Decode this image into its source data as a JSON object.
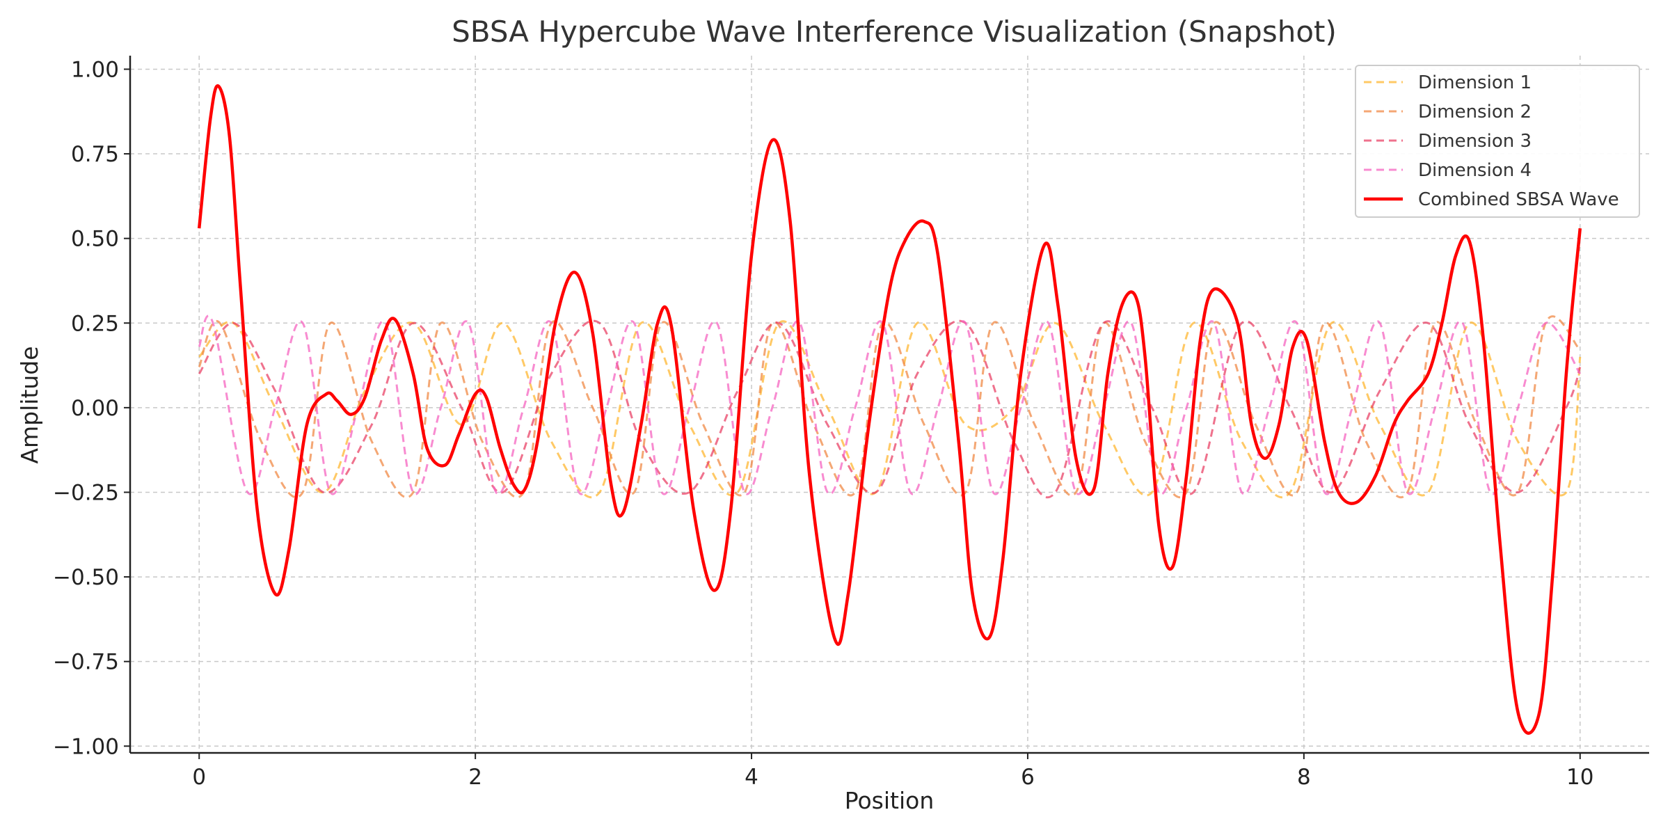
{
  "chart_data": {
    "type": "line",
    "title": "SBSA Hypercube Wave Interference Visualization (Snapshot)",
    "xlabel": "Position",
    "ylabel": "Amplitude",
    "xlim": [
      -0.5,
      10.5
    ],
    "ylim": [
      -1.02,
      1.04
    ],
    "x_ticks": [
      0,
      2,
      4,
      6,
      8,
      10
    ],
    "x_tick_labels": [
      "0",
      "2",
      "4",
      "6",
      "8",
      "10"
    ],
    "y_ticks": [
      1.0,
      0.75,
      0.5,
      0.25,
      0.0,
      -0.25,
      -0.5,
      -0.75,
      -1.0
    ],
    "y_tick_labels": [
      "1.00",
      "0.75",
      "0.50",
      "0.25",
      "0.00",
      "−0.25",
      "−0.50",
      "−0.75",
      "−1.00"
    ],
    "grid": true,
    "legend_position": "top-right",
    "series": [
      {
        "name": "Dimension 1",
        "style": "dashed",
        "color": "#FFB732",
        "opacity": 0.75,
        "x": [
          0,
          0.25,
          0.55,
          0.9,
          1.2,
          1.55,
          1.9,
          2.2,
          2.55,
          2.9,
          3.2,
          3.55,
          3.9,
          4.2,
          4.55,
          4.9,
          5.2,
          5.55,
          5.9,
          6.2,
          6.55,
          6.9,
          7.2,
          7.55,
          7.9,
          8.2,
          8.55,
          8.9,
          9.2,
          9.55,
          9.9,
          10
        ],
        "y": [
          0.15,
          0.25,
          0.0,
          -0.25,
          0.05,
          0.25,
          -0.05,
          0.25,
          -0.1,
          -0.25,
          0.25,
          -0.05,
          -0.25,
          0.25,
          0.0,
          -0.25,
          0.25,
          -0.05,
          0.0,
          0.25,
          -0.05,
          -0.25,
          0.25,
          -0.1,
          -0.25,
          0.25,
          -0.05,
          -0.25,
          0.25,
          -0.1,
          -0.25,
          0.15
        ]
      },
      {
        "name": "Dimension 2",
        "style": "dashed",
        "color": "#F08A45",
        "opacity": 0.75,
        "x": [
          0,
          0.15,
          0.45,
          0.75,
          0.95,
          1.25,
          1.55,
          1.75,
          2.05,
          2.35,
          2.55,
          2.85,
          3.15,
          3.35,
          3.65,
          3.95,
          4.15,
          4.45,
          4.75,
          4.95,
          5.25,
          5.55,
          5.75,
          6.05,
          6.35,
          6.55,
          6.85,
          7.15,
          7.35,
          7.65,
          7.95,
          8.15,
          8.45,
          8.75,
          8.95,
          9.25,
          9.55,
          9.75,
          10
        ],
        "y": [
          0.12,
          0.25,
          -0.1,
          -0.25,
          0.25,
          -0.1,
          -0.25,
          0.25,
          -0.1,
          -0.25,
          0.25,
          0.0,
          -0.25,
          0.25,
          -0.05,
          -0.25,
          0.25,
          -0.05,
          -0.25,
          0.25,
          -0.05,
          -0.25,
          0.25,
          -0.05,
          -0.25,
          0.25,
          -0.1,
          -0.25,
          0.25,
          -0.05,
          -0.25,
          0.25,
          -0.1,
          -0.25,
          0.25,
          -0.05,
          -0.25,
          0.25,
          0.17
        ]
      },
      {
        "name": "Dimension 3",
        "style": "dashed",
        "color": "#E8365D",
        "opacity": 0.7,
        "x": [
          0,
          0.25,
          0.55,
          0.9,
          1.25,
          1.55,
          1.9,
          2.2,
          2.55,
          2.9,
          3.2,
          3.55,
          3.9,
          4.2,
          4.55,
          4.9,
          5.2,
          5.55,
          5.9,
          6.2,
          6.55,
          6.9,
          7.2,
          7.55,
          7.9,
          8.2,
          8.55,
          8.9,
          9.2,
          9.55,
          9.9,
          10
        ],
        "y": [
          0.1,
          0.25,
          0.05,
          -0.25,
          -0.05,
          0.25,
          0.0,
          -0.25,
          0.1,
          0.25,
          -0.1,
          -0.25,
          0.05,
          0.25,
          -0.05,
          -0.25,
          0.1,
          0.25,
          -0.1,
          -0.25,
          0.25,
          0.0,
          -0.25,
          0.25,
          0.0,
          -0.25,
          0.05,
          0.25,
          -0.05,
          -0.25,
          0.0,
          0.12
        ]
      },
      {
        "name": "Dimension 4",
        "style": "dashed",
        "color": "#F564C0",
        "opacity": 0.75,
        "x": [
          0,
          0.1,
          0.35,
          0.55,
          0.75,
          0.95,
          1.15,
          1.35,
          1.55,
          1.75,
          1.95,
          2.15,
          2.35,
          2.55,
          2.75,
          2.95,
          3.15,
          3.35,
          3.55,
          3.75,
          3.95,
          4.15,
          4.35,
          4.55,
          4.75,
          4.95,
          5.15,
          5.35,
          5.55,
          5.75,
          5.95,
          6.15,
          6.35,
          6.55,
          6.75,
          6.95,
          7.15,
          7.35,
          7.55,
          7.75,
          7.95,
          8.15,
          8.35,
          8.55,
          8.75,
          8.95,
          9.15,
          9.35,
          9.55,
          9.75,
          10
        ],
        "y": [
          0.18,
          0.25,
          -0.25,
          0.0,
          0.25,
          -0.25,
          0.0,
          0.25,
          -0.25,
          0.0,
          0.25,
          -0.25,
          0.0,
          0.25,
          -0.25,
          0.0,
          0.25,
          -0.25,
          0.0,
          0.25,
          -0.25,
          0.0,
          0.25,
          -0.25,
          0.0,
          0.25,
          -0.25,
          0.0,
          0.25,
          -0.25,
          0.0,
          0.25,
          -0.25,
          0.0,
          0.25,
          -0.25,
          0.0,
          0.25,
          -0.25,
          0.0,
          0.25,
          -0.25,
          0.0,
          0.25,
          -0.25,
          0.0,
          0.25,
          -0.25,
          0.0,
          0.25,
          0.1
        ]
      },
      {
        "name": "Combined SBSA Wave",
        "style": "solid",
        "color": "#FF0000",
        "opacity": 1.0,
        "x": [
          0,
          0.08,
          0.14,
          0.22,
          0.3,
          0.42,
          0.55,
          0.65,
          0.78,
          0.92,
          1.0,
          1.1,
          1.2,
          1.32,
          1.42,
          1.55,
          1.65,
          1.78,
          1.88,
          2.0,
          2.08,
          2.18,
          2.28,
          2.36,
          2.45,
          2.58,
          2.72,
          2.85,
          2.98,
          3.07,
          3.2,
          3.32,
          3.42,
          3.58,
          3.73,
          3.85,
          4.0,
          4.15,
          4.28,
          4.42,
          4.6,
          4.7,
          4.85,
          5.0,
          5.12,
          5.25,
          5.35,
          5.5,
          5.6,
          5.72,
          5.82,
          5.95,
          6.12,
          6.22,
          6.35,
          6.48,
          6.58,
          6.68,
          6.78,
          6.85,
          6.95,
          7.05,
          7.15,
          7.25,
          7.35,
          7.52,
          7.62,
          7.72,
          7.82,
          7.92,
          8.02,
          8.15,
          8.25,
          8.38,
          8.52,
          8.65,
          8.75,
          8.9,
          9.0,
          9.1,
          9.2,
          9.3,
          9.42,
          9.55,
          9.7,
          9.8,
          9.9,
          10
        ],
        "y": [
          0.53,
          0.85,
          0.95,
          0.8,
          0.35,
          -0.3,
          -0.55,
          -0.42,
          -0.05,
          0.04,
          0.02,
          -0.02,
          0.03,
          0.2,
          0.26,
          0.1,
          -0.12,
          -0.17,
          -0.08,
          0.04,
          0.03,
          -0.12,
          -0.23,
          -0.24,
          -0.1,
          0.25,
          0.4,
          0.22,
          -0.22,
          -0.31,
          -0.05,
          0.25,
          0.24,
          -0.3,
          -0.54,
          -0.3,
          0.45,
          0.79,
          0.55,
          -0.2,
          -0.68,
          -0.55,
          -0.05,
          0.35,
          0.5,
          0.55,
          0.45,
          -0.1,
          -0.55,
          -0.68,
          -0.45,
          0.1,
          0.48,
          0.3,
          -0.15,
          -0.24,
          0.1,
          0.3,
          0.33,
          0.15,
          -0.35,
          -0.47,
          -0.2,
          0.2,
          0.35,
          0.25,
          -0.05,
          -0.15,
          -0.05,
          0.18,
          0.2,
          -0.1,
          -0.25,
          -0.28,
          -0.2,
          -0.05,
          0.02,
          0.1,
          0.25,
          0.45,
          0.49,
          0.2,
          -0.4,
          -0.9,
          -0.91,
          -0.5,
          0.1,
          0.53
        ]
      }
    ]
  }
}
